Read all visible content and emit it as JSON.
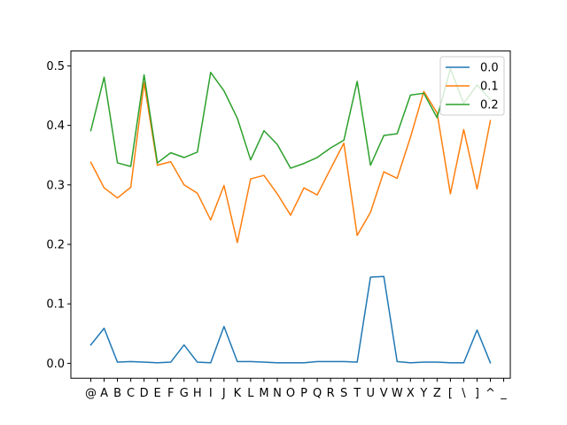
{
  "chart_data": {
    "type": "line",
    "title": "",
    "xlabel": "",
    "ylabel": "",
    "categories": [
      "@",
      "A",
      "B",
      "C",
      "D",
      "E",
      "F",
      "G",
      "H",
      "I",
      "J",
      "K",
      "L",
      "M",
      "N",
      "O",
      "P",
      "Q",
      "R",
      "S",
      "T",
      "U",
      "V",
      "W",
      "X",
      "Y",
      "Z",
      "[",
      "\\",
      "]",
      "^",
      "_"
    ],
    "ylim": [
      -0.025,
      0.525
    ],
    "yticks": [
      0.0,
      0.1,
      0.2,
      0.3,
      0.4,
      0.5
    ],
    "ytick_labels": [
      "0.0",
      "0.1",
      "0.2",
      "0.3",
      "0.4",
      "0.5"
    ],
    "grid": false,
    "legend_position": "top-right",
    "series": [
      {
        "name": "0.0",
        "color": "#1f77b4",
        "values": [
          0.031,
          0.059,
          0.002,
          0.003,
          0.002,
          0.001,
          0.002,
          0.031,
          0.002,
          0.001,
          0.062,
          0.003,
          0.003,
          0.002,
          0.001,
          0.001,
          0.001,
          0.003,
          0.003,
          0.003,
          0.002,
          0.145,
          0.146,
          0.003,
          0.001,
          0.002,
          0.002,
          0.001,
          0.001,
          0.056,
          0.001,
          null
        ]
      },
      {
        "name": "0.1",
        "color": "#ff7f0e",
        "values": [
          0.338,
          0.295,
          0.278,
          0.296,
          0.472,
          0.333,
          0.339,
          0.3,
          0.286,
          0.241,
          0.299,
          0.203,
          0.31,
          0.316,
          0.285,
          0.249,
          0.295,
          0.283,
          0.327,
          0.37,
          0.215,
          0.254,
          0.322,
          0.311,
          0.38,
          0.457,
          0.421,
          0.285,
          0.393,
          0.293,
          0.408,
          null
        ]
      },
      {
        "name": "0.2",
        "color": "#2ca02c",
        "values": [
          0.391,
          0.481,
          0.337,
          0.331,
          0.485,
          0.337,
          0.354,
          0.346,
          0.355,
          0.489,
          0.458,
          0.412,
          0.342,
          0.391,
          0.368,
          0.328,
          0.336,
          0.346,
          0.362,
          0.375,
          0.474,
          0.333,
          0.383,
          0.386,
          0.451,
          0.454,
          0.413,
          0.495,
          0.437,
          0.468,
          0.443,
          null
        ]
      }
    ]
  }
}
